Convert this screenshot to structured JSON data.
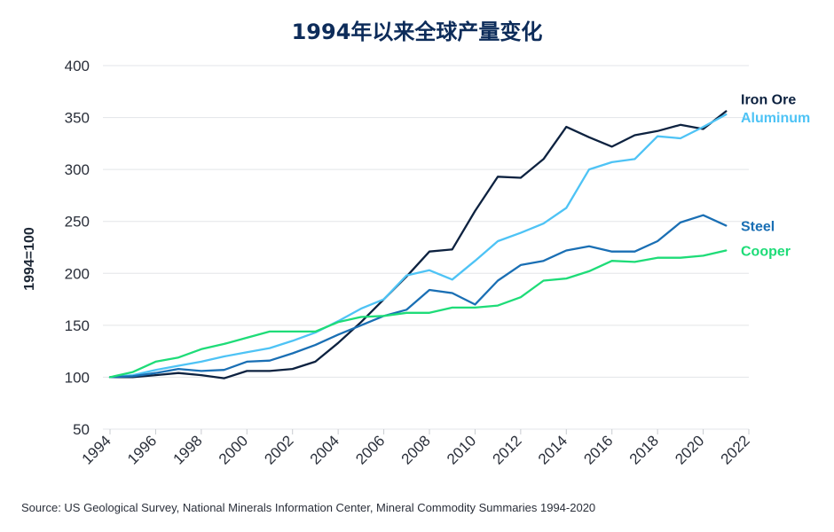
{
  "chart_data": {
    "type": "line",
    "title": "1994年以来全球产量变化",
    "ylabel": "1994=100",
    "xlabel": "",
    "xlim": [
      1994,
      2022
    ],
    "ylim": [
      50,
      400
    ],
    "yticks": [
      50,
      100,
      150,
      200,
      250,
      300,
      350,
      400
    ],
    "xticks": [
      1994,
      1996,
      1998,
      2000,
      2002,
      2004,
      2006,
      2008,
      2010,
      2012,
      2014,
      2016,
      2018,
      2020,
      2022
    ],
    "grid": "horizontal",
    "x": [
      1994,
      1995,
      1996,
      1997,
      1998,
      1999,
      2000,
      2001,
      2002,
      2003,
      2004,
      2005,
      2006,
      2007,
      2008,
      2009,
      2010,
      2011,
      2012,
      2013,
      2014,
      2015,
      2016,
      2017,
      2018,
      2019,
      2020,
      2021
    ],
    "series": [
      {
        "name": "Iron Ore",
        "color": "#0d2240",
        "values": [
          100,
          100,
          102,
          104,
          102,
          99,
          106,
          106,
          108,
          115,
          133,
          153,
          175,
          197,
          221,
          223,
          260,
          293,
          292,
          310,
          341,
          331,
          322,
          333,
          337,
          343,
          339,
          356
        ]
      },
      {
        "name": "Aluminum",
        "color": "#4ec3f5",
        "values": [
          100,
          102,
          107,
          111,
          115,
          120,
          124,
          128,
          135,
          143,
          154,
          166,
          175,
          198,
          203,
          194,
          212,
          231,
          239,
          248,
          263,
          300,
          307,
          310,
          332,
          330,
          341,
          353
        ]
      },
      {
        "name": "Steel",
        "color": "#1a6fb4",
        "values": [
          100,
          101,
          104,
          108,
          106,
          107,
          115,
          116,
          123,
          131,
          141,
          150,
          159,
          165,
          184,
          181,
          170,
          193,
          208,
          212,
          222,
          226,
          221,
          221,
          231,
          249,
          256,
          246
        ]
      },
      {
        "name": "Cooper",
        "color": "#1edc78",
        "values": [
          100,
          105,
          115,
          119,
          127,
          132,
          138,
          144,
          144,
          144,
          153,
          158,
          159,
          162,
          162,
          167,
          167,
          169,
          177,
          193,
          195,
          202,
          212,
          211,
          215,
          215,
          217,
          222
        ]
      }
    ]
  },
  "source_text": "Source: US Geological Survey, National Minerals Information Center, Mineral Commodity Summaries 1994-2020"
}
